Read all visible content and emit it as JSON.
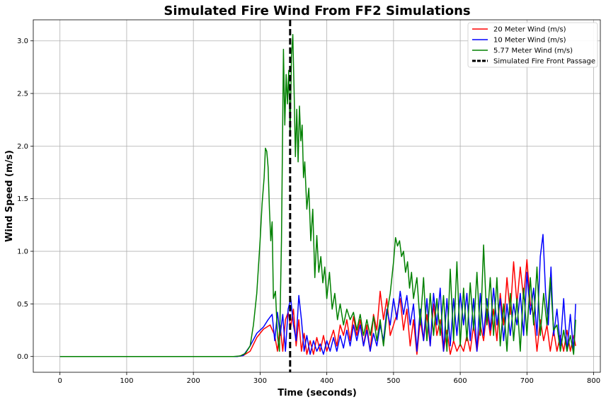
{
  "chart_data": {
    "type": "line",
    "title": "Simulated Fire Wind From FF2 Simulations",
    "xlabel": "Time (seconds)",
    "ylabel": "Wind Speed (m/s)",
    "xlim": [
      -40,
      810
    ],
    "ylim": [
      -0.15,
      3.2
    ],
    "xticks": [
      0,
      100,
      200,
      300,
      400,
      500,
      600,
      700,
      800
    ],
    "yticks": [
      0.0,
      0.5,
      1.0,
      1.5,
      2.0,
      2.5,
      3.0
    ],
    "xtick_labels": [
      "0",
      "100",
      "200",
      "300",
      "400",
      "500",
      "600",
      "700",
      "800"
    ],
    "ytick_labels": [
      "0.0",
      "0.5",
      "1.0",
      "1.5",
      "2.0",
      "2.5",
      "3.0"
    ],
    "grid": true,
    "legend_position": "top-right",
    "series": [
      {
        "name": "20 Meter Wind (m/s)",
        "color": "#ff0000",
        "x": [
          0,
          100,
          200,
          265,
          275,
          285,
          295,
          305,
          315,
          322,
          326,
          330,
          334,
          338,
          342,
          346,
          350,
          354,
          358,
          362,
          366,
          370,
          375,
          380,
          385,
          390,
          395,
          400,
          405,
          410,
          415,
          420,
          425,
          430,
          435,
          440,
          445,
          450,
          455,
          460,
          465,
          470,
          475,
          480,
          485,
          490,
          495,
          500,
          505,
          510,
          515,
          520,
          525,
          530,
          535,
          540,
          545,
          550,
          555,
          560,
          565,
          570,
          575,
          580,
          585,
          590,
          595,
          600,
          605,
          610,
          615,
          620,
          625,
          630,
          635,
          640,
          645,
          650,
          655,
          660,
          665,
          670,
          675,
          680,
          685,
          690,
          695,
          700,
          705,
          710,
          715,
          720,
          725,
          730,
          735,
          740,
          745,
          750,
          755,
          760,
          765,
          770,
          773
        ],
        "y": [
          0,
          0,
          0,
          0,
          0.01,
          0.05,
          0.18,
          0.26,
          0.3,
          0.2,
          0.05,
          0.3,
          0.05,
          0.35,
          0.42,
          0.28,
          0.45,
          0.1,
          0.35,
          0.05,
          0.22,
          0.02,
          0.15,
          0.02,
          0.18,
          0.05,
          0.2,
          0.05,
          0.15,
          0.25,
          0.1,
          0.3,
          0.2,
          0.35,
          0.15,
          0.38,
          0.2,
          0.35,
          0.1,
          0.3,
          0.05,
          0.4,
          0.25,
          0.62,
          0.35,
          0.55,
          0.2,
          0.3,
          0.4,
          0.55,
          0.25,
          0.45,
          0.1,
          0.35,
          0.02,
          0.35,
          0.15,
          0.4,
          0.1,
          0.5,
          0.2,
          0.35,
          0.05,
          0.25,
          0.02,
          0.15,
          0.05,
          0.12,
          0.05,
          0.2,
          0.05,
          0.3,
          0.05,
          0.3,
          0.15,
          0.45,
          0.2,
          0.45,
          0.15,
          0.6,
          0.3,
          0.75,
          0.4,
          0.9,
          0.5,
          0.85,
          0.55,
          0.92,
          0.5,
          0.4,
          0.05,
          0.35,
          0.15,
          0.3,
          0.05,
          0.25,
          0.05,
          0.2,
          0.05,
          0.25,
          0.05,
          0.2,
          0.1
        ]
      },
      {
        "name": "10 Meter Wind (m/s)",
        "color": "#0000ff",
        "x": [
          0,
          100,
          200,
          265,
          275,
          285,
          295,
          305,
          312,
          318,
          322,
          326,
          330,
          334,
          338,
          342,
          346,
          350,
          354,
          358,
          362,
          366,
          370,
          375,
          380,
          385,
          390,
          395,
          400,
          405,
          410,
          415,
          420,
          425,
          430,
          435,
          440,
          445,
          450,
          455,
          460,
          465,
          470,
          475,
          480,
          485,
          490,
          495,
          500,
          505,
          510,
          515,
          520,
          525,
          530,
          535,
          540,
          545,
          550,
          555,
          560,
          565,
          570,
          575,
          580,
          585,
          590,
          595,
          600,
          605,
          610,
          615,
          620,
          625,
          630,
          635,
          640,
          645,
          650,
          655,
          660,
          665,
          670,
          675,
          680,
          685,
          690,
          695,
          700,
          705,
          710,
          715,
          720,
          724,
          728,
          732,
          736,
          740,
          745,
          750,
          755,
          760,
          765,
          770,
          773
        ],
        "y": [
          0,
          0,
          0,
          0,
          0.01,
          0.1,
          0.22,
          0.28,
          0.35,
          0.4,
          0.15,
          0.42,
          0.2,
          0.4,
          0.05,
          0.45,
          0.55,
          0.3,
          0.15,
          0.58,
          0.35,
          0.05,
          0.2,
          0.02,
          0.15,
          0.05,
          0.12,
          0.02,
          0.15,
          0.05,
          0.18,
          0.05,
          0.2,
          0.08,
          0.25,
          0.1,
          0.3,
          0.15,
          0.3,
          0.1,
          0.25,
          0.05,
          0.22,
          0.1,
          0.3,
          0.15,
          0.45,
          0.3,
          0.55,
          0.35,
          0.62,
          0.4,
          0.58,
          0.3,
          0.5,
          0.05,
          0.45,
          0.15,
          0.55,
          0.1,
          0.6,
          0.3,
          0.65,
          0.05,
          0.55,
          0.1,
          0.55,
          0.2,
          0.6,
          0.3,
          0.6,
          0.15,
          0.55,
          0.05,
          0.6,
          0.2,
          0.55,
          0.25,
          0.65,
          0.3,
          0.55,
          0.15,
          0.5,
          0.2,
          0.5,
          0.3,
          0.6,
          0.2,
          0.8,
          0.4,
          0.65,
          0.2,
          0.95,
          1.16,
          0.6,
          0.3,
          0.85,
          0.2,
          0.45,
          0.1,
          0.55,
          0.05,
          0.4,
          0.05,
          0.5
        ]
      },
      {
        "name": "5.77 Meter Wind (m/s)",
        "color": "#008000",
        "x": [
          0,
          100,
          200,
          260,
          270,
          278,
          285,
          290,
          295,
          300,
          303,
          306,
          308,
          310,
          312,
          314,
          316,
          318,
          320,
          323,
          326,
          329,
          332,
          335,
          337,
          339,
          341,
          343,
          345,
          347,
          349,
          351,
          353,
          355,
          357,
          359,
          361,
          363,
          365,
          367,
          370,
          373,
          376,
          379,
          382,
          385,
          388,
          391,
          394,
          397,
          400,
          404,
          408,
          412,
          416,
          420,
          425,
          430,
          435,
          440,
          445,
          450,
          455,
          460,
          465,
          470,
          475,
          480,
          485,
          490,
          495,
          500,
          503,
          506,
          509,
          512,
          515,
          518,
          521,
          524,
          527,
          530,
          535,
          540,
          545,
          550,
          555,
          560,
          565,
          570,
          575,
          580,
          585,
          590,
          595,
          600,
          605,
          610,
          615,
          620,
          625,
          630,
          635,
          640,
          645,
          650,
          655,
          660,
          665,
          670,
          675,
          680,
          685,
          690,
          695,
          700,
          705,
          710,
          715,
          720,
          725,
          730,
          735,
          740,
          745,
          750,
          755,
          760,
          765,
          770,
          773
        ],
        "y": [
          0,
          0,
          0,
          0,
          0.005,
          0.03,
          0.1,
          0.3,
          0.6,
          1.1,
          1.45,
          1.7,
          1.98,
          1.95,
          1.8,
          1.4,
          1.1,
          1.28,
          0.55,
          0.62,
          0.2,
          0.05,
          1.1,
          2.92,
          2.2,
          2.68,
          2.4,
          2.72,
          2.1,
          2.85,
          3.06,
          2.5,
          1.9,
          2.35,
          1.85,
          2.38,
          2.05,
          2.2,
          1.7,
          1.85,
          1.4,
          1.6,
          1.1,
          1.4,
          0.75,
          1.15,
          0.8,
          0.95,
          0.7,
          0.85,
          0.55,
          0.8,
          0.45,
          0.6,
          0.35,
          0.5,
          0.3,
          0.45,
          0.35,
          0.42,
          0.25,
          0.4,
          0.2,
          0.35,
          0.2,
          0.38,
          0.15,
          0.35,
          0.1,
          0.4,
          0.6,
          0.9,
          1.13,
          1.05,
          1.1,
          0.95,
          1.0,
          0.8,
          0.9,
          0.65,
          0.8,
          0.55,
          0.75,
          0.3,
          0.75,
          0.15,
          0.6,
          0.2,
          0.55,
          0.2,
          0.58,
          0.05,
          0.83,
          0.15,
          0.9,
          0.1,
          0.65,
          0.15,
          0.7,
          0.25,
          0.8,
          0.2,
          1.06,
          0.3,
          0.75,
          0.2,
          0.75,
          0.1,
          0.5,
          0.05,
          0.6,
          0.15,
          0.55,
          0.05,
          0.65,
          0.2,
          0.75,
          0.3,
          0.85,
          0.2,
          0.6,
          0.3,
          0.75,
          0.25,
          0.3,
          0.05,
          0.25,
          0.05,
          0.2,
          0.02,
          0.35
        ]
      }
    ],
    "fire_front": {
      "name": "Simulated Fire Front Passage",
      "x": 345,
      "color": "#000000"
    }
  }
}
